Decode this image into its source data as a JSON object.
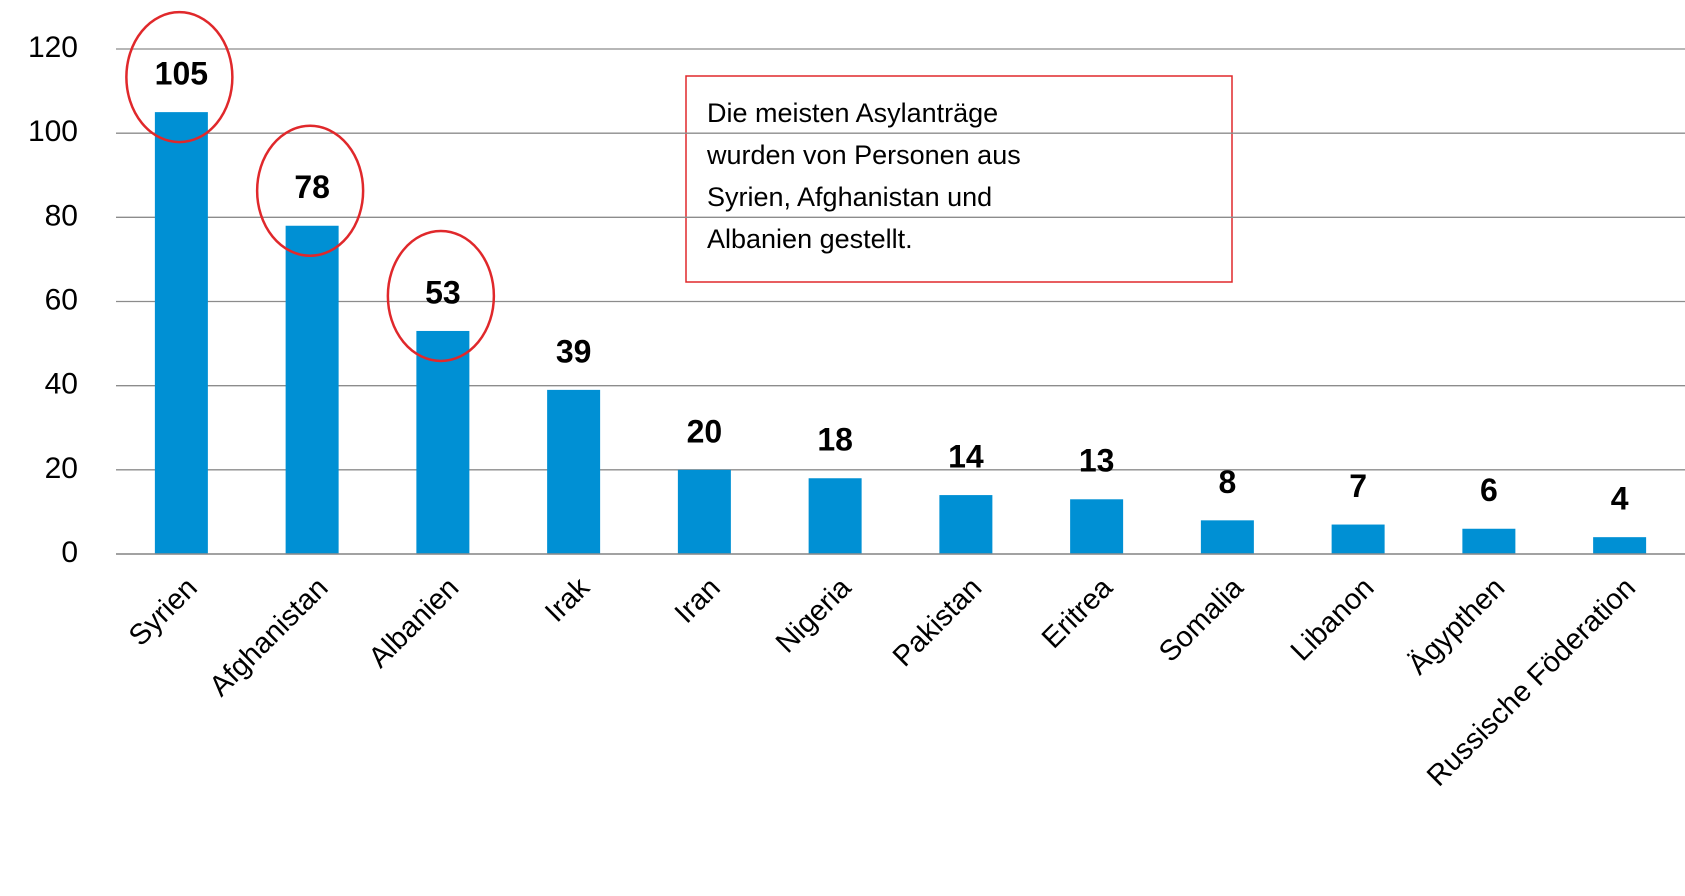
{
  "chart_data": {
    "type": "bar",
    "categories": [
      "Syrien",
      "Afghanistan",
      "Albanien",
      "Irak",
      "Iran",
      "Nigeria",
      "Pakistan",
      "Eritrea",
      "Somalia",
      "Libanon",
      "Ägypthen",
      "Russische Föderation"
    ],
    "values": [
      105,
      78,
      53,
      39,
      20,
      18,
      14,
      13,
      8,
      7,
      6,
      4
    ],
    "color": "#0090d4",
    "ylim": [
      0,
      120
    ],
    "yticks": [
      0,
      20,
      40,
      60,
      80,
      100,
      120
    ],
    "grid": true,
    "annotation": [
      "Die meisten Asylanträge",
      "wurden von Personen aus",
      "Syrien, Afghanistan und",
      "Albanien gestellt."
    ]
  }
}
